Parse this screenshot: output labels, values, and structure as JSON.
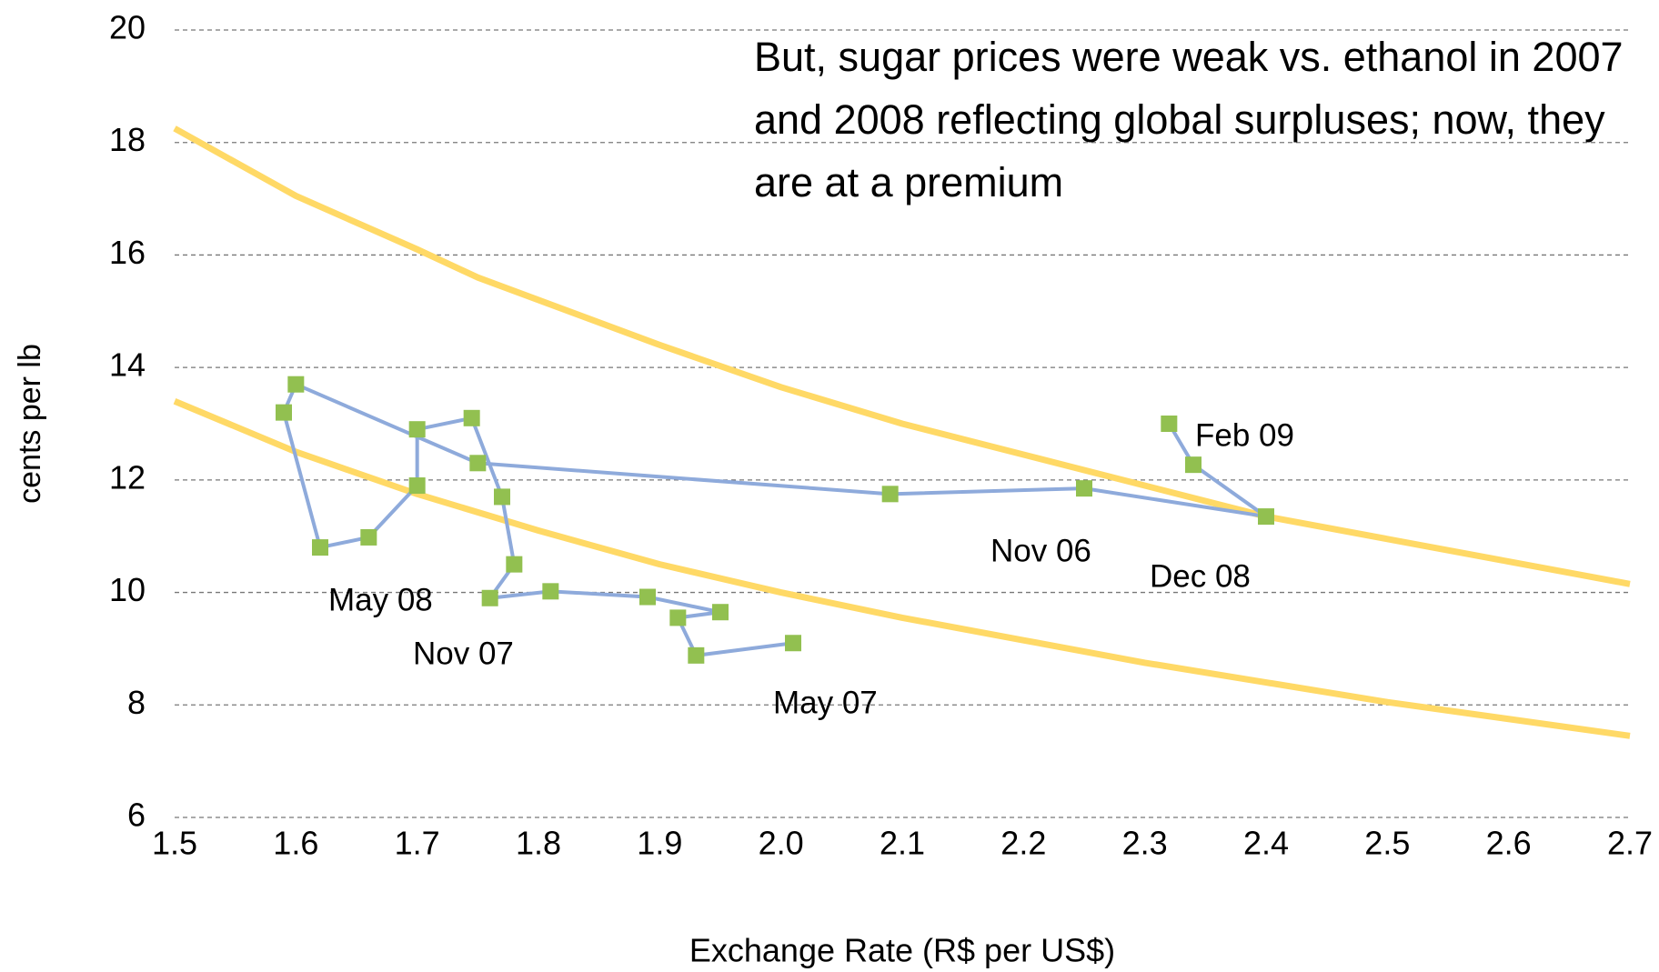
{
  "chart_data": {
    "type": "scatter-line",
    "note": "But, sugar prices were weak vs. ethanol in 2007 and 2008 reflecting global surpluses; now, they are at a premium",
    "xlabel": "Exchange Rate (R$ per US$)",
    "ylabel": "cents per lb",
    "xlim": [
      1.5,
      2.7
    ],
    "ylim": [
      6,
      20
    ],
    "xticks": [
      1.5,
      1.6,
      1.7,
      1.8,
      1.9,
      {
        "value": 2,
        "label": "2.0"
      },
      2.1,
      2.2,
      2.3,
      2.4,
      2.5,
      2.6,
      2.7
    ],
    "yticks": [
      6,
      8,
      10,
      12,
      14,
      16,
      18,
      20
    ],
    "grid": true,
    "series": [
      {
        "color": "#ffd966",
        "markers": false,
        "x": [
          1.5,
          1.6,
          1.7,
          1.75,
          1.9,
          2.0,
          2.1,
          2.2,
          2.4,
          2.5,
          2.6,
          2.7
        ],
        "values": [
          18.25,
          17.05,
          16.1,
          15.6,
          14.4,
          13.65,
          13.0,
          12.45,
          11.35,
          10.95,
          10.55,
          10.15
        ]
      },
      {
        "color": "#ffd966",
        "markers": false,
        "x": [
          1.5,
          1.6,
          1.7,
          1.8,
          1.9,
          2.0,
          2.1,
          2.2,
          2.3,
          2.4,
          2.5,
          2.6,
          2.7
        ],
        "values": [
          13.4,
          12.5,
          11.75,
          11.1,
          10.5,
          10.0,
          9.55,
          9.15,
          8.75,
          8.4,
          8.05,
          7.75,
          7.45
        ]
      },
      {
        "color": "#8eaadb",
        "marker_color": "#92c050",
        "markers": true,
        "x": [
          2.32,
          2.34,
          2.4,
          2.25,
          2.09,
          1.75,
          1.6,
          1.59,
          1.62,
          1.66,
          1.7,
          1.7,
          1.745,
          1.77,
          1.78,
          1.76,
          1.81,
          1.89,
          1.95,
          1.915,
          1.93,
          2.01
        ],
        "values": [
          13.0,
          12.27,
          11.35,
          11.85,
          11.75,
          12.3,
          13.7,
          13.2,
          10.8,
          10.98,
          11.9,
          12.9,
          13.1,
          11.7,
          10.5,
          9.9,
          10.02,
          9.92,
          9.65,
          9.55,
          8.88,
          9.1
        ]
      }
    ],
    "annotations": [
      "Feb 09",
      "Nov 06",
      "Dec 08",
      "May 08",
      "Nov 07",
      "May 07"
    ]
  }
}
